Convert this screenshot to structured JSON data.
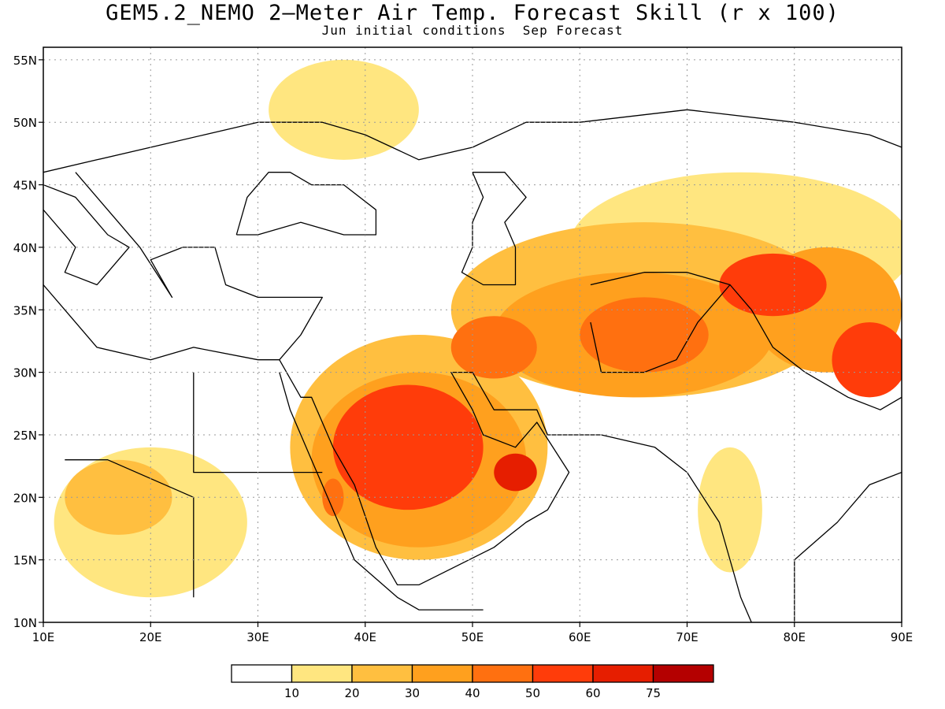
{
  "title": "GEM5.2_NEMO 2—Meter Air Temp. Forecast Skill (r x 100)",
  "subtitle": "Jun initial conditions  Sep Forecast",
  "map": {
    "lon_range": [
      10,
      90
    ],
    "lat_range": [
      10,
      56
    ],
    "lon_ticks": [
      {
        "value": 10,
        "label": "10E"
      },
      {
        "value": 20,
        "label": "20E"
      },
      {
        "value": 30,
        "label": "30E"
      },
      {
        "value": 40,
        "label": "40E"
      },
      {
        "value": 50,
        "label": "50E"
      },
      {
        "value": 60,
        "label": "60E"
      },
      {
        "value": 70,
        "label": "70E"
      },
      {
        "value": 80,
        "label": "80E"
      },
      {
        "value": 90,
        "label": "90E"
      }
    ],
    "lat_ticks": [
      {
        "value": 10,
        "label": "10N"
      },
      {
        "value": 15,
        "label": "15N"
      },
      {
        "value": 20,
        "label": "20N"
      },
      {
        "value": 25,
        "label": "25N"
      },
      {
        "value": 30,
        "label": "30N"
      },
      {
        "value": 35,
        "label": "35N"
      },
      {
        "value": 40,
        "label": "40N"
      },
      {
        "value": 45,
        "label": "45N"
      },
      {
        "value": 50,
        "label": "50N"
      },
      {
        "value": 55,
        "label": "55N"
      }
    ],
    "grid": "dotted"
  },
  "legend": {
    "colors": [
      "#ffffff",
      "#ffe680",
      "#ffbf40",
      "#ffa01e",
      "#ff7010",
      "#ff3c0a",
      "#e61e00",
      "#b40000"
    ],
    "labels": [
      "10",
      "20",
      "30",
      "40",
      "50",
      "60",
      "75"
    ]
  },
  "chart_data": {
    "type": "heatmap",
    "title": "GEM5.2_NEMO 2—Meter Air Temp. Forecast Skill (r x 100)",
    "subtitle": "Jun initial conditions  Sep Forecast",
    "xlabel": "",
    "ylabel": "",
    "xlim": [
      10,
      90
    ],
    "ylim": [
      10,
      56
    ],
    "levels": [
      10,
      20,
      30,
      40,
      50,
      60,
      75
    ],
    "regions": [
      {
        "level": 5,
        "lon": 44,
        "lat": 24,
        "rlon": 7,
        "rlat": 5
      },
      {
        "level": 6,
        "lon": 54,
        "lat": 22,
        "rlon": 2,
        "rlat": 1.5
      },
      {
        "level": 5,
        "lon": 78,
        "lat": 37,
        "rlon": 5,
        "rlat": 2.5
      },
      {
        "level": 5,
        "lon": 87,
        "lat": 31,
        "rlon": 3.5,
        "rlat": 3
      },
      {
        "level": 4,
        "lon": 66,
        "lat": 33,
        "rlon": 6,
        "rlat": 3
      },
      {
        "level": 4,
        "lon": 52,
        "lat": 32,
        "rlon": 4,
        "rlat": 2.5
      },
      {
        "level": 4,
        "lon": 37,
        "lat": 20,
        "rlon": 1,
        "rlat": 1.5
      },
      {
        "level": 3,
        "lon": 45,
        "lat": 23,
        "rlon": 10,
        "rlat": 7
      },
      {
        "level": 3,
        "lon": 65,
        "lat": 33,
        "rlon": 13,
        "rlat": 5
      },
      {
        "level": 3,
        "lon": 83,
        "lat": 35,
        "rlon": 7,
        "rlat": 5
      },
      {
        "level": 2,
        "lon": 17,
        "lat": 20,
        "rlon": 5,
        "rlat": 3
      },
      {
        "level": 2,
        "lon": 45,
        "lat": 24,
        "rlon": 12,
        "rlat": 9
      },
      {
        "level": 2,
        "lon": 66,
        "lat": 35,
        "rlon": 18,
        "rlat": 7
      },
      {
        "level": 1,
        "lon": 75,
        "lat": 40,
        "rlon": 16,
        "rlat": 6
      },
      {
        "level": 1,
        "lon": 20,
        "lat": 18,
        "rlon": 9,
        "rlat": 6
      },
      {
        "level": 1,
        "lon": 38,
        "lat": 51,
        "rlon": 7,
        "rlat": 4
      },
      {
        "level": 1,
        "lon": 74,
        "lat": 19,
        "rlon": 3,
        "rlat": 5
      }
    ]
  }
}
